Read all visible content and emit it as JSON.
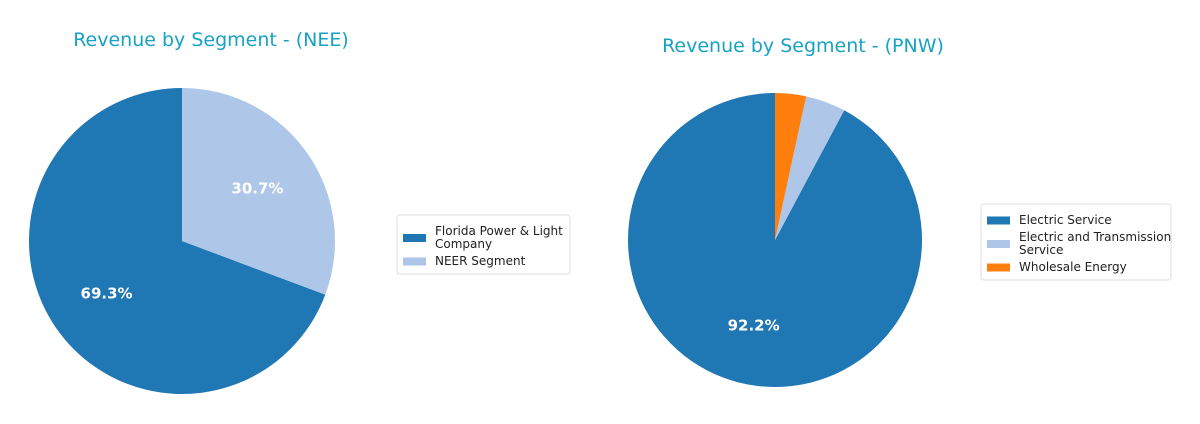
{
  "chart_data": [
    {
      "type": "pie",
      "title": "Revenue by Segment - (NEE)",
      "labels": [
        "Florida Power & Light Company",
        "NEER Segment"
      ],
      "legend_lines": [
        [
          "Florida Power & Light",
          "Company"
        ],
        [
          "NEER Segment"
        ]
      ],
      "values": [
        69.3,
        30.7
      ],
      "value_labels": [
        "69.3%",
        "30.7%"
      ],
      "colors": [
        "#1f77b4",
        "#aec7e8"
      ],
      "show_label": [
        true,
        true
      ],
      "legend": "right"
    },
    {
      "type": "pie",
      "title": "Revenue by Segment - (PNW)",
      "labels": [
        "Electric Service",
        "Electric and Transmission Service",
        "Wholesale Energy"
      ],
      "legend_lines": [
        [
          "Electric Service"
        ],
        [
          "Electric and Transmission",
          "Service"
        ],
        [
          "Wholesale Energy"
        ]
      ],
      "values": [
        92.2,
        4.4,
        3.4
      ],
      "value_labels": [
        "92.2%",
        "",
        ""
      ],
      "colors": [
        "#1f77b4",
        "#aec7e8",
        "#ff7f0e"
      ],
      "show_label": [
        true,
        false,
        false
      ],
      "legend": "right"
    }
  ]
}
